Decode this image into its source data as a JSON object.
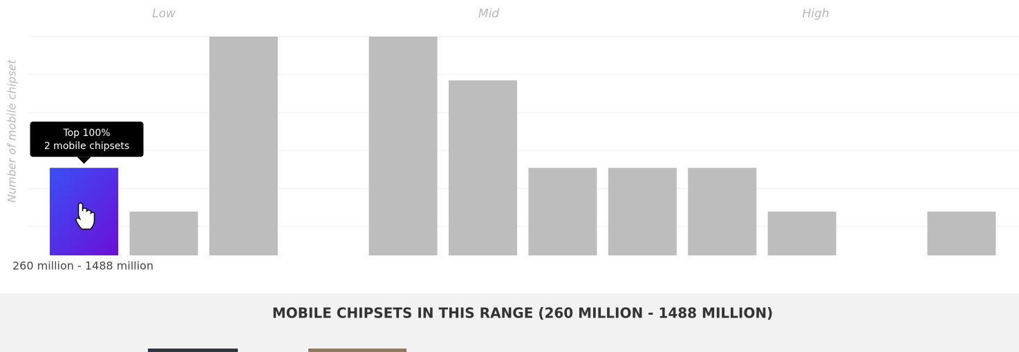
{
  "chart_data": {
    "type": "bar",
    "y_label": "Number of mobile chipset",
    "sections": [
      "Low",
      "Mid",
      "High"
    ],
    "values": [
      2,
      1,
      5,
      0,
      5,
      4,
      2,
      2,
      2,
      1,
      0,
      1
    ],
    "ylim": [
      0,
      5
    ],
    "color": "#bdbdbd",
    "highlight_index": 0,
    "highlight_colors": [
      "#3b4ff6",
      "#6b0fd6"
    ],
    "tooltip": [
      "Top 100%",
      "2 mobile chipsets"
    ],
    "range_label": "260 million - 1488 million"
  },
  "section_heading": "MOBILE CHIPSETS IN THIS RANGE (260 MILLION - 1488 MILLION)"
}
